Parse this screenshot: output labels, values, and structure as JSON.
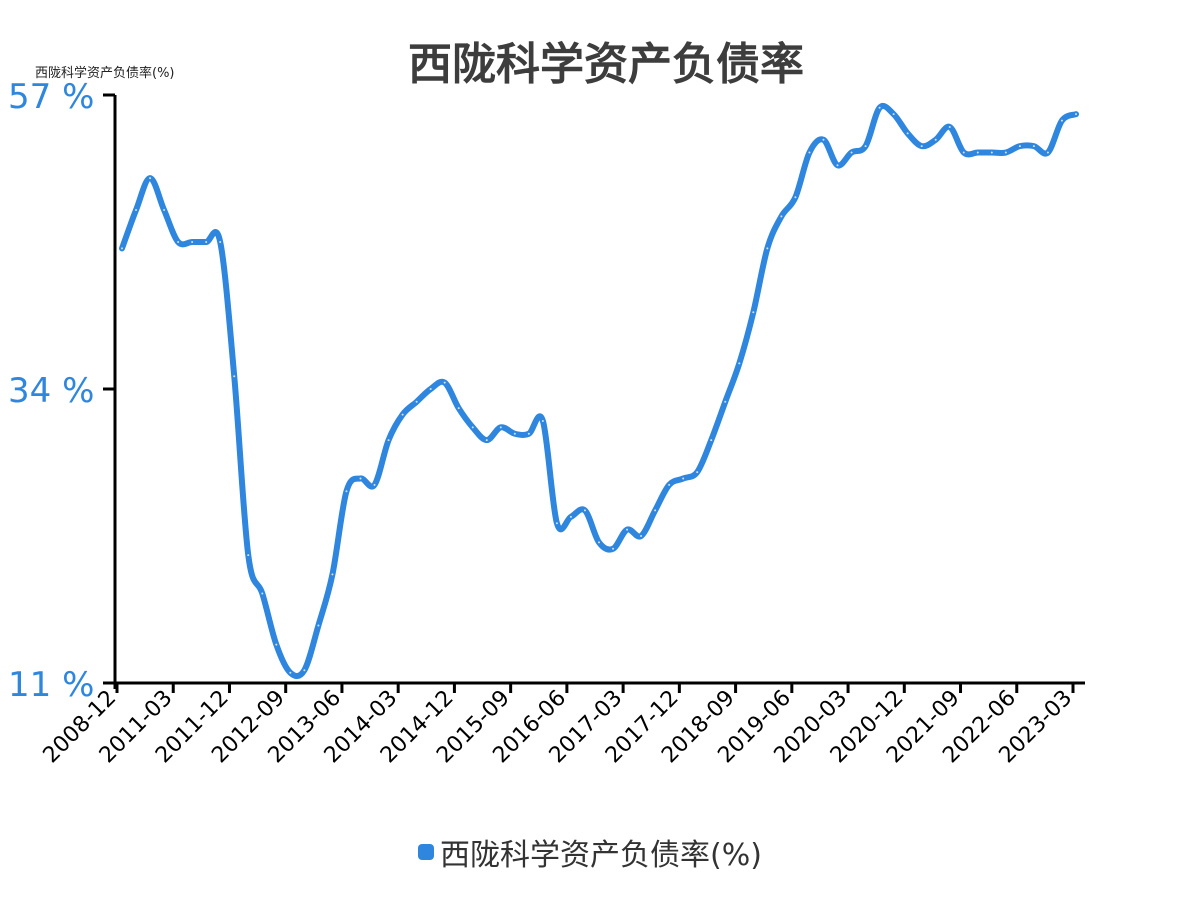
{
  "chart_data": {
    "type": "line",
    "title": "西陇科学资产负债率",
    "ylabel": "西陇科学资产负债率(%)",
    "ylim": [
      11,
      57
    ],
    "ytick_values": [
      11,
      34,
      57
    ],
    "ytick_labels": [
      "11 %",
      "34 %",
      "57 %"
    ],
    "xtick_labels": [
      "2008-12",
      "2011-03",
      "2011-12",
      "2012-09",
      "2013-06",
      "2014-03",
      "2014-12",
      "2015-09",
      "2016-06",
      "2017-03",
      "2017-12",
      "2018-09",
      "2019-06",
      "2020-03",
      "2020-12",
      "2021-09",
      "2022-06",
      "2023-03"
    ],
    "grid": false,
    "legend_position": "bottom",
    "series": [
      {
        "name": "西陇科学资产负债率(%)",
        "color": "#2e86de",
        "values": [
          45.0,
          48.0,
          50.5,
          48.0,
          45.5,
          45.5,
          45.5,
          45.5,
          35.0,
          21.0,
          18.0,
          14.0,
          11.8,
          12.0,
          15.5,
          19.5,
          26.0,
          27.0,
          26.5,
          30.0,
          32.0,
          33.0,
          34.0,
          34.5,
          32.5,
          31.0,
          30.0,
          31.0,
          30.5,
          30.5,
          31.5,
          23.5,
          24.0,
          24.5,
          22.0,
          21.5,
          23.0,
          22.5,
          24.5,
          26.5,
          27.0,
          27.5,
          30.0,
          33.0,
          36.0,
          40.0,
          45.0,
          47.5,
          49.0,
          52.5,
          53.5,
          51.5,
          52.5,
          53.0,
          56.0,
          55.5,
          54.0,
          53.0,
          53.5,
          54.5,
          52.5,
          52.5,
          52.5,
          52.5,
          53.0,
          53.0,
          52.5,
          55.0,
          55.5
        ]
      }
    ]
  }
}
